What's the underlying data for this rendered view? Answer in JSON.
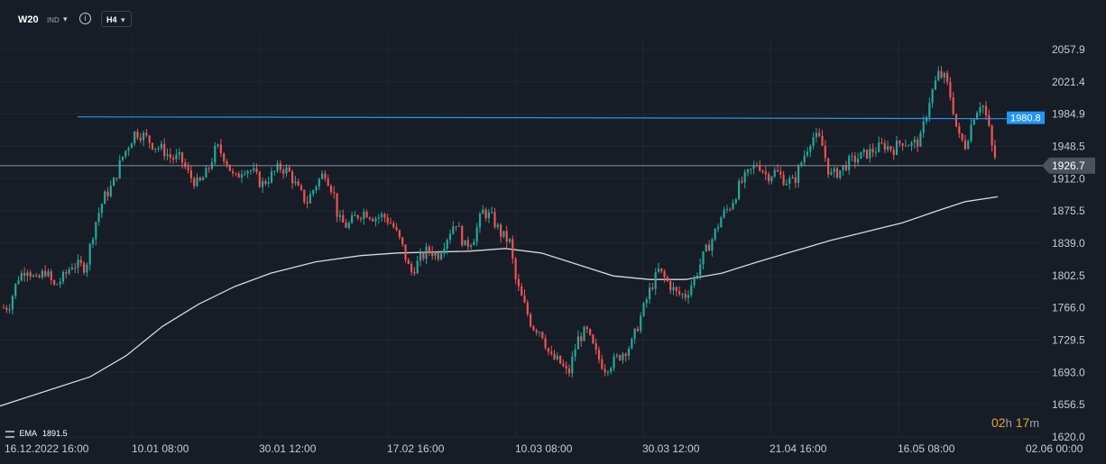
{
  "toolbar": {
    "symbol": "W20",
    "symbol_type": "IND",
    "timeframe": "H4",
    "info_icon": "info-circle-icon",
    "dropdown_icon": "chevron-down-icon"
  },
  "indicator": {
    "name": "EMA",
    "value": "1891.5"
  },
  "countdown": {
    "hours": "02",
    "hours_unit": "h",
    "minutes": "17",
    "minutes_unit": "m"
  },
  "colors": {
    "background": "#161d26",
    "up": "#26a69a",
    "down": "#ef5350",
    "ema": "#d8d8d8",
    "resistance_line": "#2196f3",
    "price_line": "#8a939e",
    "grid": "#1f2731",
    "countdown": "#f0a030"
  },
  "chart_data": {
    "type": "candlestick",
    "instrument": "W20",
    "interval": "H4",
    "y_ticks": [
      "2057.9",
      "2021.4",
      "1984.9",
      "1948.5",
      "1912.0",
      "1875.5",
      "1839.0",
      "1802.5",
      "1766.0",
      "1729.5",
      "1693.0",
      "1656.5",
      "1620.0"
    ],
    "x_ticks": [
      "16.12.2022  16:00",
      "10.01  08:00",
      "30.01  12:00",
      "17.02  16:00",
      "10.03  08:00",
      "30.03  12:00",
      "21.04  16:00",
      "16.05  08:00",
      "02.06  00:00"
    ],
    "ylim": [
      1620.0,
      2057.9
    ],
    "horizontal_lines": [
      {
        "label": "1980.8",
        "value": 1980.8
      },
      {
        "label": "1926.7",
        "value": 1926.7
      }
    ],
    "ema": {
      "name": "EMA",
      "value": 1891.5
    },
    "close_path": [
      [
        0,
        1765
      ],
      [
        10,
        1768
      ],
      [
        20,
        1800
      ],
      [
        30,
        1812
      ],
      [
        40,
        1795
      ],
      [
        50,
        1808
      ],
      [
        60,
        1790
      ],
      [
        70,
        1800
      ],
      [
        80,
        1815
      ],
      [
        95,
        1812
      ],
      [
        105,
        1860
      ],
      [
        115,
        1890
      ],
      [
        125,
        1905
      ],
      [
        135,
        1935
      ],
      [
        150,
        1965
      ],
      [
        160,
        1960
      ],
      [
        170,
        1950
      ],
      [
        180,
        1945
      ],
      [
        190,
        1935
      ],
      [
        200,
        1935
      ],
      [
        210,
        1915
      ],
      [
        220,
        1905
      ],
      [
        230,
        1920
      ],
      [
        240,
        1948
      ],
      [
        250,
        1935
      ],
      [
        260,
        1910
      ],
      [
        270,
        1925
      ],
      [
        280,
        1920
      ],
      [
        290,
        1905
      ],
      [
        300,
        1915
      ],
      [
        310,
        1925
      ],
      [
        320,
        1920
      ],
      [
        330,
        1900
      ],
      [
        340,
        1885
      ],
      [
        350,
        1905
      ],
      [
        360,
        1920
      ],
      [
        370,
        1895
      ],
      [
        375,
        1865
      ],
      [
        385,
        1858
      ],
      [
        395,
        1870
      ],
      [
        405,
        1875
      ],
      [
        415,
        1868
      ],
      [
        425,
        1870
      ],
      [
        435,
        1860
      ],
      [
        445,
        1838
      ],
      [
        455,
        1805
      ],
      [
        465,
        1820
      ],
      [
        475,
        1832
      ],
      [
        485,
        1825
      ],
      [
        495,
        1845
      ],
      [
        505,
        1865
      ],
      [
        515,
        1835
      ],
      [
        525,
        1845
      ],
      [
        535,
        1875
      ],
      [
        545,
        1868
      ],
      [
        555,
        1850
      ],
      [
        565,
        1840
      ],
      [
        572,
        1795
      ],
      [
        580,
        1772
      ],
      [
        590,
        1745
      ],
      [
        600,
        1740
      ],
      [
        610,
        1710
      ],
      [
        620,
        1705
      ],
      [
        630,
        1690
      ],
      [
        640,
        1730
      ],
      [
        650,
        1740
      ],
      [
        660,
        1715
      ],
      [
        670,
        1698
      ],
      [
        680,
        1705
      ],
      [
        690,
        1715
      ],
      [
        700,
        1725
      ],
      [
        710,
        1755
      ],
      [
        720,
        1785
      ],
      [
        730,
        1808
      ],
      [
        740,
        1795
      ],
      [
        750,
        1782
      ],
      [
        760,
        1780
      ],
      [
        770,
        1800
      ],
      [
        780,
        1825
      ],
      [
        790,
        1845
      ],
      [
        800,
        1870
      ],
      [
        810,
        1882
      ],
      [
        820,
        1905
      ],
      [
        830,
        1918
      ],
      [
        840,
        1930
      ],
      [
        850,
        1915
      ],
      [
        860,
        1920
      ],
      [
        870,
        1910
      ],
      [
        880,
        1908
      ],
      [
        890,
        1935
      ],
      [
        900,
        1960
      ],
      [
        910,
        1955
      ],
      [
        920,
        1915
      ],
      [
        930,
        1920
      ],
      [
        940,
        1930
      ],
      [
        950,
        1935
      ],
      [
        960,
        1940
      ],
      [
        970,
        1945
      ],
      [
        980,
        1950
      ],
      [
        990,
        1945
      ],
      [
        1000,
        1955
      ],
      [
        1010,
        1950
      ],
      [
        1020,
        1955
      ],
      [
        1030,
        2000
      ],
      [
        1040,
        2030
      ],
      [
        1048,
        2025
      ],
      [
        1055,
        2000
      ],
      [
        1062,
        1960
      ],
      [
        1070,
        1950
      ],
      [
        1080,
        1985
      ],
      [
        1088,
        2000
      ],
      [
        1095,
        1975
      ],
      [
        1100,
        1945
      ],
      [
        1106,
        1926.7
      ]
    ],
    "ema_path": [
      [
        0,
        1655
      ],
      [
        100,
        1688
      ],
      [
        140,
        1712
      ],
      [
        180,
        1745
      ],
      [
        220,
        1770
      ],
      [
        260,
        1790
      ],
      [
        300,
        1805
      ],
      [
        350,
        1818
      ],
      [
        400,
        1825
      ],
      [
        440,
        1828
      ],
      [
        480,
        1829
      ],
      [
        520,
        1830
      ],
      [
        560,
        1833
      ],
      [
        600,
        1828
      ],
      [
        640,
        1815
      ],
      [
        680,
        1802
      ],
      [
        720,
        1798
      ],
      [
        760,
        1798
      ],
      [
        800,
        1805
      ],
      [
        840,
        1818
      ],
      [
        880,
        1830
      ],
      [
        920,
        1842
      ],
      [
        960,
        1852
      ],
      [
        1000,
        1862
      ],
      [
        1040,
        1876
      ],
      [
        1070,
        1886
      ],
      [
        1106,
        1891.5
      ]
    ]
  }
}
